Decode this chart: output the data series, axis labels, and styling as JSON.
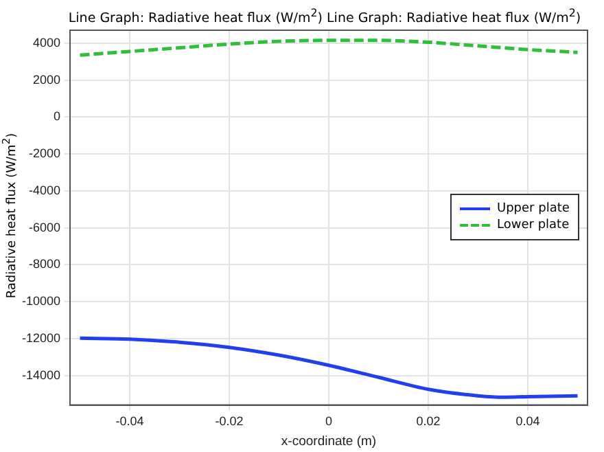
{
  "chart_data": {
    "type": "line",
    "title": "Line Graph: Radiative heat flux (W/m$^{2}$)  Line Graph: Radiative heat flux (W/m$^{2}$)",
    "xlabel": "x-coordinate (m)",
    "ylabel": "Radiative heat flux (W/m$^{2}$)",
    "xlim": [
      -0.052,
      0.052
    ],
    "xticks": [
      -0.04,
      -0.02,
      0,
      0.02,
      0.04
    ],
    "ylim": [
      -15600,
      4700
    ],
    "yticks": [
      -14000,
      -12000,
      -10000,
      -8000,
      -6000,
      -4000,
      -2000,
      0,
      2000,
      4000
    ],
    "grid": true,
    "legend": "right",
    "marker": "none",
    "series": [
      {
        "name": "Upper plate",
        "color": "#1f3ff0",
        "line_style": "solid",
        "x": [
          -0.05,
          -0.04,
          -0.03,
          -0.02,
          -0.01,
          0,
          0.01,
          0.02,
          0.03,
          0.035,
          0.04,
          0.05
        ],
        "values": [
          -11980,
          -12030,
          -12200,
          -12480,
          -12900,
          -13450,
          -14100,
          -14750,
          -15100,
          -15180,
          -15150,
          -15100
        ]
      },
      {
        "name": "Lower plate",
        "color": "#2fbf3a",
        "line_style": "dashed",
        "x": [
          -0.05,
          -0.04,
          -0.03,
          -0.02,
          -0.01,
          0,
          0.01,
          0.02,
          0.03,
          0.04,
          0.05
        ],
        "values": [
          3350,
          3550,
          3750,
          3950,
          4100,
          4150,
          4150,
          4050,
          3850,
          3650,
          3500
        ]
      }
    ]
  }
}
